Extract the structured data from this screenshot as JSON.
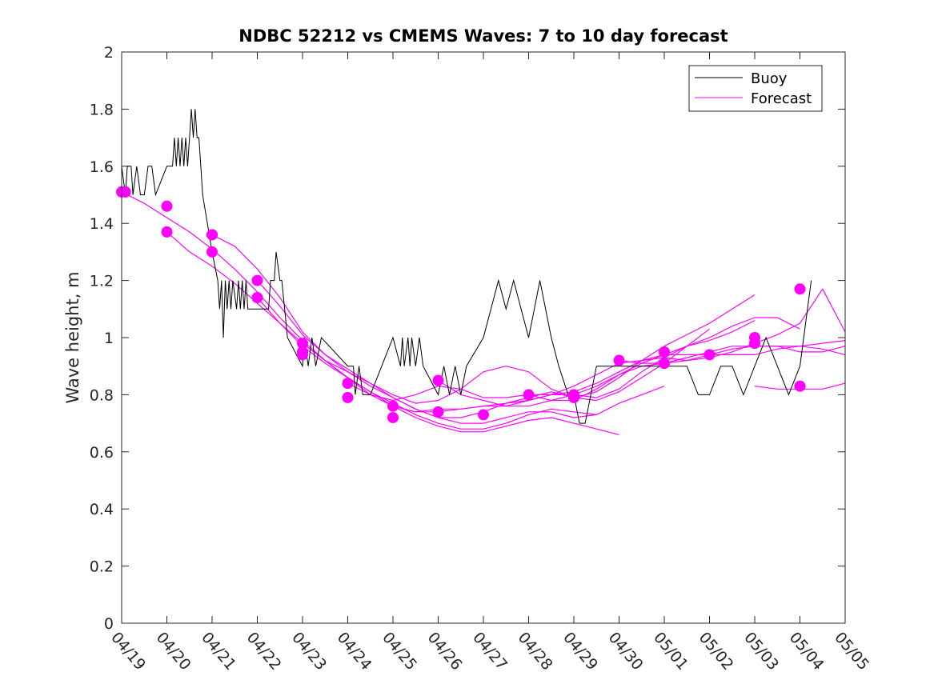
{
  "chart_data": {
    "type": "line",
    "title": "NDBC 52212 vs CMEMS Waves: 7 to 10 day forecast",
    "xlabel": "",
    "ylabel": "Wave height, m",
    "xlim": [
      "2024-04-19",
      "2024-05-05"
    ],
    "ylim": [
      0,
      2
    ],
    "x_tick_labels": [
      "04/19",
      "04/20",
      "04/21",
      "04/22",
      "04/23",
      "04/24",
      "04/25",
      "04/26",
      "04/27",
      "04/28",
      "04/29",
      "04/30",
      "05/01",
      "05/02",
      "05/03",
      "05/04",
      "05/05"
    ],
    "y_tick_labels": [
      "0",
      "0.2",
      "0.4",
      "0.6",
      "0.8",
      "1",
      "1.2",
      "1.4",
      "1.6",
      "1.8",
      "2"
    ],
    "grid": false,
    "legend_position": "top-right",
    "legend": [
      "Buoy",
      "Forecast"
    ],
    "colors": {
      "buoy": "#000000",
      "forecast": "#ff00ff"
    },
    "buoy": {
      "name": "Buoy",
      "x": [
        "2024-04-19 00:00",
        "2024-04-19 02:00",
        "2024-04-19 03:00",
        "2024-04-19 05:00",
        "2024-04-19 06:00",
        "2024-04-19 08:00",
        "2024-04-19 10:00",
        "2024-04-19 12:00",
        "2024-04-19 14:00",
        "2024-04-19 16:00",
        "2024-04-19 18:00",
        "2024-04-20 00:00",
        "2024-04-20 03:00",
        "2024-04-20 04:00",
        "2024-04-20 05:00",
        "2024-04-20 06:00",
        "2024-04-20 07:00",
        "2024-04-20 08:00",
        "2024-04-20 09:00",
        "2024-04-20 10:00",
        "2024-04-20 11:00",
        "2024-04-20 12:00",
        "2024-04-20 13:00",
        "2024-04-20 14:00",
        "2024-04-20 15:00",
        "2024-04-20 16:00",
        "2024-04-20 17:00",
        "2024-04-20 18:00",
        "2024-04-20 19:00",
        "2024-04-21 00:00",
        "2024-04-21 03:00",
        "2024-04-21 04:00",
        "2024-04-21 05:00",
        "2024-04-21 06:00",
        "2024-04-21 07:00",
        "2024-04-21 08:00",
        "2024-04-21 09:00",
        "2024-04-21 10:00",
        "2024-04-21 11:00",
        "2024-04-21 13:00",
        "2024-04-21 14:00",
        "2024-04-21 15:00",
        "2024-04-21 16:00",
        "2024-04-21 17:00",
        "2024-04-21 18:00",
        "2024-04-21 19:00",
        "2024-04-22 00:00",
        "2024-04-22 06:00",
        "2024-04-22 07:00",
        "2024-04-22 09:00",
        "2024-04-22 10:00",
        "2024-04-22 12:00",
        "2024-04-22 13:00",
        "2024-04-22 16:00",
        "2024-04-23 00:00",
        "2024-04-23 01:00",
        "2024-04-23 03:00",
        "2024-04-23 05:00",
        "2024-04-23 07:00",
        "2024-04-23 10:00",
        "2024-04-24 00:00",
        "2024-04-24 03:00",
        "2024-04-24 04:00",
        "2024-04-24 06:00",
        "2024-04-24 08:00",
        "2024-04-24 12:00",
        "2024-04-24 18:00",
        "2024-04-25 00:00",
        "2024-04-25 04:00",
        "2024-04-25 05:00",
        "2024-04-25 06:00",
        "2024-04-25 08:00",
        "2024-04-25 09:00",
        "2024-04-25 10:00",
        "2024-04-25 12:00",
        "2024-04-25 14:00",
        "2024-04-25 16:00",
        "2024-04-26 00:00",
        "2024-04-26 03:00",
        "2024-04-26 06:00",
        "2024-04-26 09:00",
        "2024-04-26 12:00",
        "2024-04-26 15:00",
        "2024-04-27 00:00",
        "2024-04-27 04:00",
        "2024-04-27 08:00",
        "2024-04-27 12:00",
        "2024-04-27 16:00",
        "2024-04-28 00:00",
        "2024-04-28 03:00",
        "2024-04-28 06:00",
        "2024-04-28 09:00",
        "2024-04-28 12:00",
        "2024-04-28 16:00",
        "2024-04-28 21:00",
        "2024-04-29 00:00",
        "2024-04-29 03:00",
        "2024-04-29 06:00",
        "2024-04-29 09:00",
        "2024-04-29 12:00",
        "2024-04-29 15:00",
        "2024-04-29 18:00",
        "2024-04-30 00:00",
        "2024-04-30 06:00",
        "2024-04-30 12:00",
        "2024-04-30 18:00",
        "2024-05-01 00:00",
        "2024-05-01 06:00",
        "2024-05-01 12:00",
        "2024-05-01 18:00",
        "2024-05-02 00:00",
        "2024-05-02 06:00",
        "2024-05-02 12:00",
        "2024-05-02 18:00",
        "2024-05-03 00:00",
        "2024-05-03 06:00",
        "2024-05-03 12:00",
        "2024-05-03 18:00",
        "2024-05-04 00:00",
        "2024-05-04 06:00"
      ],
      "y": [
        1.6,
        1.5,
        1.6,
        1.6,
        1.5,
        1.6,
        1.5,
        1.5,
        1.6,
        1.6,
        1.5,
        1.6,
        1.6,
        1.7,
        1.6,
        1.7,
        1.6,
        1.7,
        1.6,
        1.7,
        1.6,
        1.7,
        1.8,
        1.7,
        1.8,
        1.7,
        1.7,
        1.6,
        1.5,
        1.3,
        1.2,
        1.1,
        1.2,
        1.0,
        1.2,
        1.1,
        1.2,
        1.1,
        1.2,
        1.1,
        1.2,
        1.1,
        1.2,
        1.1,
        1.2,
        1.1,
        1.1,
        1.1,
        1.2,
        1.2,
        1.3,
        1.2,
        1.2,
        1.0,
        0.9,
        1.0,
        0.9,
        1.0,
        0.9,
        1.0,
        0.9,
        0.9,
        0.8,
        0.9,
        0.8,
        0.8,
        0.9,
        1.0,
        0.9,
        1.0,
        0.9,
        1.0,
        0.9,
        1.0,
        0.9,
        1.0,
        0.9,
        0.8,
        0.9,
        0.8,
        0.9,
        0.8,
        0.9,
        1.0,
        1.1,
        1.2,
        1.1,
        1.2,
        1.0,
        1.1,
        1.2,
        1.1,
        1.0,
        0.9,
        0.8,
        0.8,
        0.7,
        0.7,
        0.8,
        0.9,
        0.9,
        0.9,
        0.9,
        0.9,
        0.9,
        0.9,
        0.9,
        0.9,
        0.9,
        0.8,
        0.8,
        0.9,
        0.9,
        0.8,
        0.9,
        1.0,
        0.9,
        0.8,
        0.9,
        1.2
      ]
    },
    "forecast_runs": [
      {
        "x": [
          "2024-04-19 00:00",
          "2024-04-19 12:00",
          "2024-04-20 00:00",
          "2024-04-20 12:00",
          "2024-04-21 00:00",
          "2024-04-21 12:00",
          "2024-04-22 00:00",
          "2024-04-22 12:00",
          "2024-04-23 00:00",
          "2024-04-23 12:00",
          "2024-04-24 00:00",
          "2024-04-24 12:00",
          "2024-04-25 00:00",
          "2024-04-25 12:00",
          "2024-04-26 00:00",
          "2024-04-26 12:00",
          "2024-04-27 00:00",
          "2024-04-27 12:00",
          "2024-04-28 00:00",
          "2024-04-28 12:00",
          "2024-04-29 00:00",
          "2024-04-29 12:00"
        ],
        "y": [
          1.51,
          1.47,
          1.42,
          1.37,
          1.31,
          1.24,
          1.16,
          1.07,
          0.99,
          0.92,
          0.86,
          0.81,
          0.77,
          0.73,
          0.7,
          0.68,
          0.68,
          0.7,
          0.73,
          0.75,
          0.74,
          0.73
        ]
      },
      {
        "x": [
          "2024-04-20 00:00",
          "2024-04-20 12:00",
          "2024-04-21 00:00",
          "2024-04-21 12:00",
          "2024-04-22 00:00",
          "2024-04-22 12:00",
          "2024-04-23 00:00",
          "2024-04-23 12:00",
          "2024-04-24 00:00",
          "2024-04-24 12:00",
          "2024-04-25 00:00",
          "2024-04-25 12:00",
          "2024-04-26 00:00",
          "2024-04-26 12:00",
          "2024-04-27 00:00",
          "2024-04-27 12:00",
          "2024-04-28 00:00",
          "2024-04-28 12:00",
          "2024-04-29 00:00",
          "2024-04-29 12:00",
          "2024-04-30 00:00"
        ],
        "y": [
          1.37,
          1.3,
          1.25,
          1.19,
          1.12,
          1.05,
          0.98,
          0.92,
          0.86,
          0.81,
          0.76,
          0.72,
          0.69,
          0.67,
          0.67,
          0.69,
          0.71,
          0.72,
          0.7,
          0.68,
          0.66
        ]
      },
      {
        "x": [
          "2024-04-21 00:00",
          "2024-04-21 12:00",
          "2024-04-22 00:00",
          "2024-04-22 12:00",
          "2024-04-23 00:00",
          "2024-04-23 12:00",
          "2024-04-24 00:00",
          "2024-04-24 12:00",
          "2024-04-25 00:00",
          "2024-04-25 12:00",
          "2024-04-26 00:00",
          "2024-04-26 12:00",
          "2024-04-27 00:00",
          "2024-04-27 12:00",
          "2024-04-28 00:00",
          "2024-04-28 12:00",
          "2024-04-29 00:00",
          "2024-04-29 12:00",
          "2024-04-30 00:00",
          "2024-04-30 12:00",
          "2024-05-01 00:00"
        ],
        "y": [
          1.36,
          1.32,
          1.24,
          1.14,
          1.02,
          0.94,
          0.89,
          0.84,
          0.79,
          0.75,
          0.72,
          0.7,
          0.7,
          0.72,
          0.74,
          0.74,
          0.72,
          0.73,
          0.77,
          0.8,
          0.83
        ]
      },
      {
        "x": [
          "2024-04-22 00:00",
          "2024-04-22 12:00",
          "2024-04-23 00:00",
          "2024-04-23 12:00",
          "2024-04-24 00:00",
          "2024-04-24 12:00",
          "2024-04-25 00:00",
          "2024-04-25 12:00",
          "2024-04-26 00:00",
          "2024-04-26 12:00",
          "2024-04-27 00:00",
          "2024-04-27 12:00",
          "2024-04-28 00:00",
          "2024-04-28 12:00",
          "2024-04-29 00:00",
          "2024-04-29 12:00",
          "2024-04-30 00:00",
          "2024-04-30 12:00",
          "2024-05-01 00:00",
          "2024-05-01 12:00",
          "2024-05-02 00:00"
        ],
        "y": [
          1.2,
          1.11,
          1.01,
          0.94,
          0.88,
          0.83,
          0.79,
          0.75,
          0.72,
          0.72,
          0.74,
          0.77,
          0.79,
          0.81,
          0.79,
          0.78,
          0.81,
          0.86,
          0.91,
          0.97,
          1.03
        ]
      },
      {
        "x": [
          "2024-04-22 00:00",
          "2024-04-22 12:00",
          "2024-04-23 00:00",
          "2024-04-23 12:00",
          "2024-04-24 00:00",
          "2024-04-24 12:00",
          "2024-04-25 00:00",
          "2024-04-25 12:00",
          "2024-04-26 00:00",
          "2024-04-26 12:00",
          "2024-04-27 00:00",
          "2024-04-27 12:00",
          "2024-04-28 00:00",
          "2024-04-28 12:00",
          "2024-04-29 00:00",
          "2024-04-29 12:00",
          "2024-04-30 00:00",
          "2024-04-30 12:00",
          "2024-05-01 00:00",
          "2024-05-01 12:00",
          "2024-05-02 00:00",
          "2024-05-02 12:00",
          "2024-05-03 00:00"
        ],
        "y": [
          1.14,
          1.05,
          0.97,
          0.91,
          0.86,
          0.8,
          0.76,
          0.74,
          0.74,
          0.75,
          0.76,
          0.77,
          0.78,
          0.8,
          0.8,
          0.79,
          0.82,
          0.88,
          0.93,
          0.97,
          0.99,
          1.02,
          1.06
        ]
      },
      {
        "x": [
          "2024-04-23 00:00",
          "2024-04-23 12:00",
          "2024-04-24 00:00",
          "2024-04-24 12:00",
          "2024-04-25 00:00",
          "2024-04-25 12:00",
          "2024-04-26 00:00",
          "2024-04-26 12:00",
          "2024-04-27 00:00",
          "2024-04-27 12:00",
          "2024-04-28 00:00",
          "2024-04-28 12:00",
          "2024-04-29 00:00",
          "2024-04-29 12:00",
          "2024-04-30 00:00",
          "2024-04-30 12:00",
          "2024-05-01 00:00",
          "2024-05-01 12:00",
          "2024-05-02 00:00",
          "2024-05-02 12:00",
          "2024-05-03 00:00"
        ],
        "y": [
          0.98,
          0.92,
          0.88,
          0.84,
          0.8,
          0.77,
          0.78,
          0.82,
          0.88,
          0.9,
          0.88,
          0.82,
          0.79,
          0.81,
          0.86,
          0.92,
          0.97,
          1.01,
          1.05,
          1.1,
          1.15
        ]
      },
      {
        "x": [
          "2024-04-24 00:00",
          "2024-04-24 12:00",
          "2024-04-25 00:00",
          "2024-04-25 12:00",
          "2024-04-26 00:00",
          "2024-04-26 12:00",
          "2024-04-27 00:00",
          "2024-04-27 12:00",
          "2024-04-28 00:00",
          "2024-04-28 12:00",
          "2024-04-29 00:00",
          "2024-04-29 12:00",
          "2024-04-30 00:00",
          "2024-04-30 12:00",
          "2024-05-01 00:00",
          "2024-05-01 12:00",
          "2024-05-02 00:00",
          "2024-05-02 12:00",
          "2024-05-03 00:00",
          "2024-05-03 12:00",
          "2024-05-04 00:00"
        ],
        "y": [
          0.84,
          0.8,
          0.78,
          0.8,
          0.83,
          0.82,
          0.79,
          0.79,
          0.8,
          0.78,
          0.78,
          0.82,
          0.87,
          0.91,
          0.94,
          0.97,
          1.0,
          1.04,
          1.07,
          1.07,
          1.03
        ]
      },
      {
        "x": [
          "2024-04-25 00:00",
          "2024-04-25 12:00",
          "2024-04-26 00:00",
          "2024-04-26 12:00",
          "2024-04-27 00:00",
          "2024-04-27 12:00",
          "2024-04-28 00:00",
          "2024-04-28 12:00",
          "2024-04-29 00:00",
          "2024-04-29 12:00",
          "2024-04-30 00:00",
          "2024-04-30 12:00",
          "2024-05-01 00:00",
          "2024-05-01 12:00",
          "2024-05-02 00:00",
          "2024-05-02 12:00",
          "2024-05-03 00:00",
          "2024-05-03 12:00",
          "2024-05-04 00:00",
          "2024-05-04 12:00",
          "2024-05-05 00:00"
        ],
        "y": [
          0.76,
          0.74,
          0.75,
          0.75,
          0.76,
          0.76,
          0.78,
          0.8,
          0.83,
          0.87,
          0.91,
          0.92,
          0.93,
          0.92,
          0.93,
          0.95,
          0.98,
          1.01,
          1.05,
          1.17,
          1.02
        ]
      },
      {
        "x": [
          "2024-04-26 00:00",
          "2024-04-26 12:00",
          "2024-04-27 00:00",
          "2024-04-27 12:00",
          "2024-04-28 00:00",
          "2024-04-28 12:00",
          "2024-04-29 00:00",
          "2024-04-29 12:00",
          "2024-04-30 00:00",
          "2024-04-30 12:00",
          "2024-05-01 00:00",
          "2024-05-01 12:00",
          "2024-05-02 00:00",
          "2024-05-02 12:00",
          "2024-05-03 00:00",
          "2024-05-03 12:00",
          "2024-05-04 00:00",
          "2024-05-04 12:00",
          "2024-05-05 00:00"
        ],
        "y": [
          0.85,
          0.8,
          0.78,
          0.76,
          0.76,
          0.78,
          0.8,
          0.83,
          0.87,
          0.9,
          0.91,
          0.93,
          0.95,
          0.97,
          0.97,
          0.97,
          0.97,
          0.98,
          0.99
        ]
      },
      {
        "x": [
          "2024-04-28 00:00",
          "2024-04-28 12:00",
          "2024-04-29 00:00",
          "2024-04-29 12:00",
          "2024-04-30 00:00",
          "2024-04-30 12:00",
          "2024-05-01 00:00",
          "2024-05-01 12:00",
          "2024-05-02 00:00",
          "2024-05-02 12:00",
          "2024-05-03 00:00",
          "2024-05-03 12:00",
          "2024-05-04 00:00",
          "2024-05-04 12:00",
          "2024-05-05 00:00"
        ],
        "y": [
          0.8,
          0.8,
          0.81,
          0.84,
          0.88,
          0.92,
          0.94,
          0.94,
          0.94,
          0.94,
          0.94,
          0.96,
          0.97,
          0.96,
          0.94
        ]
      },
      {
        "x": [
          "2024-04-30 00:00",
          "2024-04-30 12:00",
          "2024-05-01 00:00",
          "2024-05-01 12:00",
          "2024-05-02 00:00",
          "2024-05-02 12:00",
          "2024-05-03 00:00",
          "2024-05-03 12:00",
          "2024-05-04 00:00",
          "2024-05-04 12:00",
          "2024-05-05 00:00"
        ],
        "y": [
          0.92,
          0.91,
          0.91,
          0.92,
          0.94,
          0.96,
          0.97,
          0.97,
          0.95,
          0.95,
          0.97
        ]
      },
      {
        "x": [
          "2024-05-03 00:00",
          "2024-05-03 12:00",
          "2024-05-04 00:00",
          "2024-05-04 12:00",
          "2024-05-05 00:00"
        ],
        "y": [
          0.83,
          0.82,
          0.82,
          0.82,
          0.84
        ]
      }
    ],
    "forecast_init_points": {
      "x": [
        "2024-04-19 00:00",
        "2024-04-19 02:00",
        "2024-04-20 00:00",
        "2024-04-20 00:00",
        "2024-04-21 00:00",
        "2024-04-21 00:00",
        "2024-04-21 00:00",
        "2024-04-22 00:00",
        "2024-04-22 00:00",
        "2024-04-23 00:00",
        "2024-04-23 00:00",
        "2024-04-23 00:00",
        "2024-04-24 00:00",
        "2024-04-24 00:00",
        "2024-04-25 00:00",
        "2024-04-25 00:00",
        "2024-04-26 00:00",
        "2024-04-26 00:00",
        "2024-04-27 00:00",
        "2024-04-28 00:00",
        "2024-04-29 00:00",
        "2024-04-29 00:00",
        "2024-04-30 00:00",
        "2024-05-01 00:00",
        "2024-05-01 00:00",
        "2024-05-02 00:00",
        "2024-05-03 00:00",
        "2024-05-03 00:00",
        "2024-05-04 00:00",
        "2024-05-04 00:00"
      ],
      "y": [
        1.51,
        1.51,
        1.46,
        1.37,
        1.36,
        1.36,
        1.3,
        1.2,
        1.14,
        0.98,
        0.95,
        0.94,
        0.84,
        0.79,
        0.76,
        0.72,
        0.85,
        0.74,
        0.73,
        0.8,
        0.8,
        0.79,
        0.92,
        0.95,
        0.91,
        0.94,
        1.0,
        0.98,
        1.17,
        0.83
      ]
    }
  }
}
